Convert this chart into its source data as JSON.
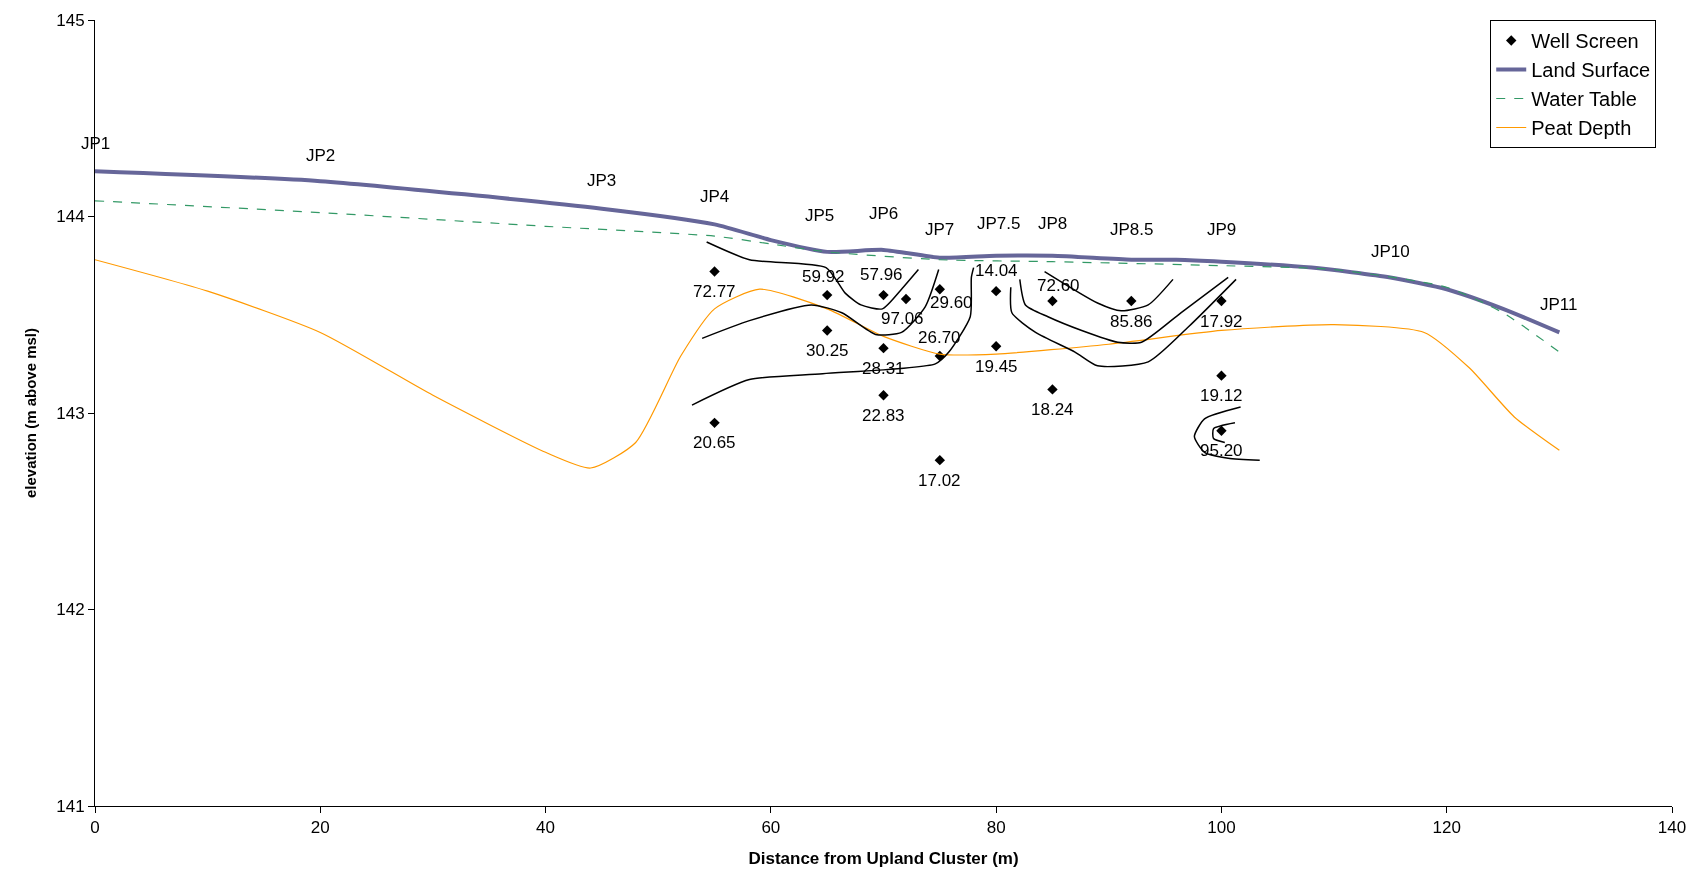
{
  "chart_data": {
    "type": "line",
    "xlabel": "Distance from Upland Cluster (m)",
    "ylabel": "elevation (m above msl)",
    "xlim": [
      0,
      140
    ],
    "xticks": [
      0,
      20,
      40,
      60,
      80,
      100,
      120,
      140
    ],
    "ylim": [
      141,
      145
    ],
    "yticks": [
      141,
      142,
      143,
      144,
      145
    ],
    "legend": "top right",
    "series": [
      {
        "name": "Well Screen",
        "type": "scatter",
        "marker": "diamond",
        "color": "#000000",
        "x": [
          55,
          55,
          65,
          65,
          70,
          70,
          70,
          72,
          75,
          75,
          75,
          80,
          80,
          85,
          85,
          92,
          100,
          100,
          100
        ],
        "values": [
          143.72,
          142.95,
          143.6,
          143.42,
          143.6,
          143.33,
          143.09,
          143.58,
          143.63,
          143.29,
          142.76,
          143.62,
          143.34,
          143.57,
          143.12,
          143.57,
          143.57,
          143.19,
          142.91
        ]
      },
      {
        "name": "Land Surface",
        "color": "#666699",
        "line_style": "solid",
        "x": [
          0,
          20,
          45,
          55,
          60,
          65,
          70,
          75,
          80,
          85,
          92,
          96,
          100,
          108,
          115,
          120,
          125,
          130
        ],
        "values": [
          144.23,
          144.18,
          144.04,
          143.96,
          143.88,
          143.82,
          143.83,
          143.79,
          143.8,
          143.8,
          143.78,
          143.78,
          143.77,
          143.74,
          143.69,
          143.63,
          143.53,
          143.41
        ]
      },
      {
        "name": "Water Table",
        "color": "#339966",
        "line_style": "dashed",
        "x": [
          0,
          20,
          40,
          55,
          60,
          65,
          75,
          85,
          100,
          110,
          120,
          125,
          130
        ],
        "values": [
          144.08,
          144.02,
          143.95,
          143.9,
          143.86,
          143.82,
          143.78,
          143.77,
          143.75,
          143.73,
          143.64,
          143.51,
          143.31
        ]
      },
      {
        "name": "Peat Depth",
        "color": "#ff9900",
        "line_style": "solid",
        "x": [
          0,
          10,
          20,
          30,
          40,
          44,
          48,
          52,
          55,
          59,
          65,
          70,
          75,
          80,
          90,
          100,
          110,
          118,
          122,
          126,
          130
        ],
        "values": [
          143.78,
          143.62,
          143.41,
          143.09,
          142.8,
          142.72,
          142.85,
          143.29,
          143.53,
          143.63,
          143.53,
          143.39,
          143.3,
          143.3,
          143.35,
          143.42,
          143.45,
          143.41,
          143.23,
          142.98,
          142.81
        ]
      },
      {
        "color": "#000000",
        "line_style": "solid",
        "x": [
          54.3,
          58.1,
          64.9,
          66.6,
          68.0,
          69.9,
          71.6,
          73.1
        ],
        "values": [
          143.87,
          143.78,
          143.74,
          143.61,
          143.55,
          143.53,
          143.63,
          143.73
        ]
      },
      {
        "color": "#000000",
        "line_style": "solid",
        "x": [
          53.9,
          58.1,
          63.6,
          66.3,
          69.3,
          71.6,
          73.7,
          74.9
        ],
        "values": [
          143.38,
          143.47,
          143.55,
          143.51,
          143.4,
          143.41,
          143.54,
          143.73
        ]
      },
      {
        "color": "#000000",
        "line_style": "solid",
        "x": [
          53.0,
          58.1,
          64.6,
          74.6,
          75.8,
          77.7,
          77.8,
          78.0
        ],
        "values": [
          143.04,
          143.17,
          143.2,
          143.25,
          143.31,
          143.49,
          143.69,
          143.74
        ]
      },
      {
        "color": "#000000",
        "line_style": "solid",
        "x": [
          81.3,
          81.4,
          83.5,
          87.0,
          89.0,
          93.5,
          97.1,
          101.3
        ],
        "values": [
          143.64,
          143.51,
          143.41,
          143.31,
          143.24,
          143.26,
          143.44,
          143.68
        ]
      },
      {
        "color": "#000000",
        "line_style": "solid",
        "x": [
          82.1,
          82.6,
          84.6,
          87.6,
          90.8,
          92.9,
          96.4,
          100.6
        ],
        "values": [
          143.68,
          143.55,
          143.49,
          143.42,
          143.36,
          143.36,
          143.51,
          143.69
        ]
      },
      {
        "color": "#000000",
        "line_style": "solid",
        "x": [
          84.3,
          89.0,
          91.1,
          93.5,
          95.7
        ],
        "values": [
          143.72,
          143.56,
          143.52,
          143.55,
          143.68
        ]
      },
      {
        "color": "#000000",
        "line_style": "solid",
        "x": [
          101.7,
          98.5,
          97.6,
          98.5,
          100.6,
          103.4
        ],
        "values": [
          143.03,
          142.97,
          142.88,
          142.8,
          142.77,
          142.76
        ]
      },
      {
        "color": "#000000",
        "line_style": "solid",
        "x": [
          101.2,
          99.3,
          99.3,
          100.3
        ],
        "values": [
          142.95,
          142.92,
          142.87,
          142.85
        ]
      }
    ],
    "annotations": [
      {
        "text": "JP1",
        "x": 0,
        "y": 144.23
      },
      {
        "text": "JP2",
        "x": 20,
        "y": 144.18
      },
      {
        "text": "JP3",
        "x": 45,
        "y": 144.04
      },
      {
        "text": "JP4",
        "x": 55,
        "y": 143.96
      },
      {
        "text": "JP5",
        "x": 65,
        "y": 143.82
      },
      {
        "text": "JP6",
        "x": 70,
        "y": 143.83
      },
      {
        "text": "JP7",
        "x": 75,
        "y": 143.79
      },
      {
        "text": "JP7.5",
        "x": 80,
        "y": 143.8
      },
      {
        "text": "JP8",
        "x": 85,
        "y": 143.8
      },
      {
        "text": "JP8.5",
        "x": 92,
        "y": 143.78
      },
      {
        "text": "JP9",
        "x": 100,
        "y": 143.77
      },
      {
        "text": "JP10",
        "x": 115,
        "y": 143.69
      },
      {
        "text": "JP11",
        "x": 130,
        "y": 143.41
      },
      {
        "text": "72.77",
        "x": 55,
        "y": 143.72
      },
      {
        "text": "20.65",
        "x": 55,
        "y": 142.95
      },
      {
        "text": "59.92",
        "x": 65,
        "y": 143.6
      },
      {
        "text": "30.25",
        "x": 65,
        "y": 143.42
      },
      {
        "text": "57.96",
        "x": 70,
        "y": 143.6
      },
      {
        "text": "28.31",
        "x": 70,
        "y": 143.33
      },
      {
        "text": "22.83",
        "x": 70,
        "y": 143.09
      },
      {
        "text": "97.06",
        "x": 72,
        "y": 143.58
      },
      {
        "text": "29.60",
        "x": 75,
        "y": 143.63
      },
      {
        "text": "26.70",
        "x": 75,
        "y": 143.29
      },
      {
        "text": "17.02",
        "x": 75,
        "y": 142.76
      },
      {
        "text": "14.04",
        "x": 80,
        "y": 143.62
      },
      {
        "text": "19.45",
        "x": 80,
        "y": 143.34
      },
      {
        "text": "72.60",
        "x": 85,
        "y": 143.57
      },
      {
        "text": "18.24",
        "x": 85,
        "y": 143.12
      },
      {
        "text": "85.86",
        "x": 92,
        "y": 143.57
      },
      {
        "text": "17.92",
        "x": 100,
        "y": 143.57
      },
      {
        "text": "19.12",
        "x": 100,
        "y": 143.19
      },
      {
        "text": "95.20",
        "x": 100,
        "y": 142.91
      }
    ]
  }
}
